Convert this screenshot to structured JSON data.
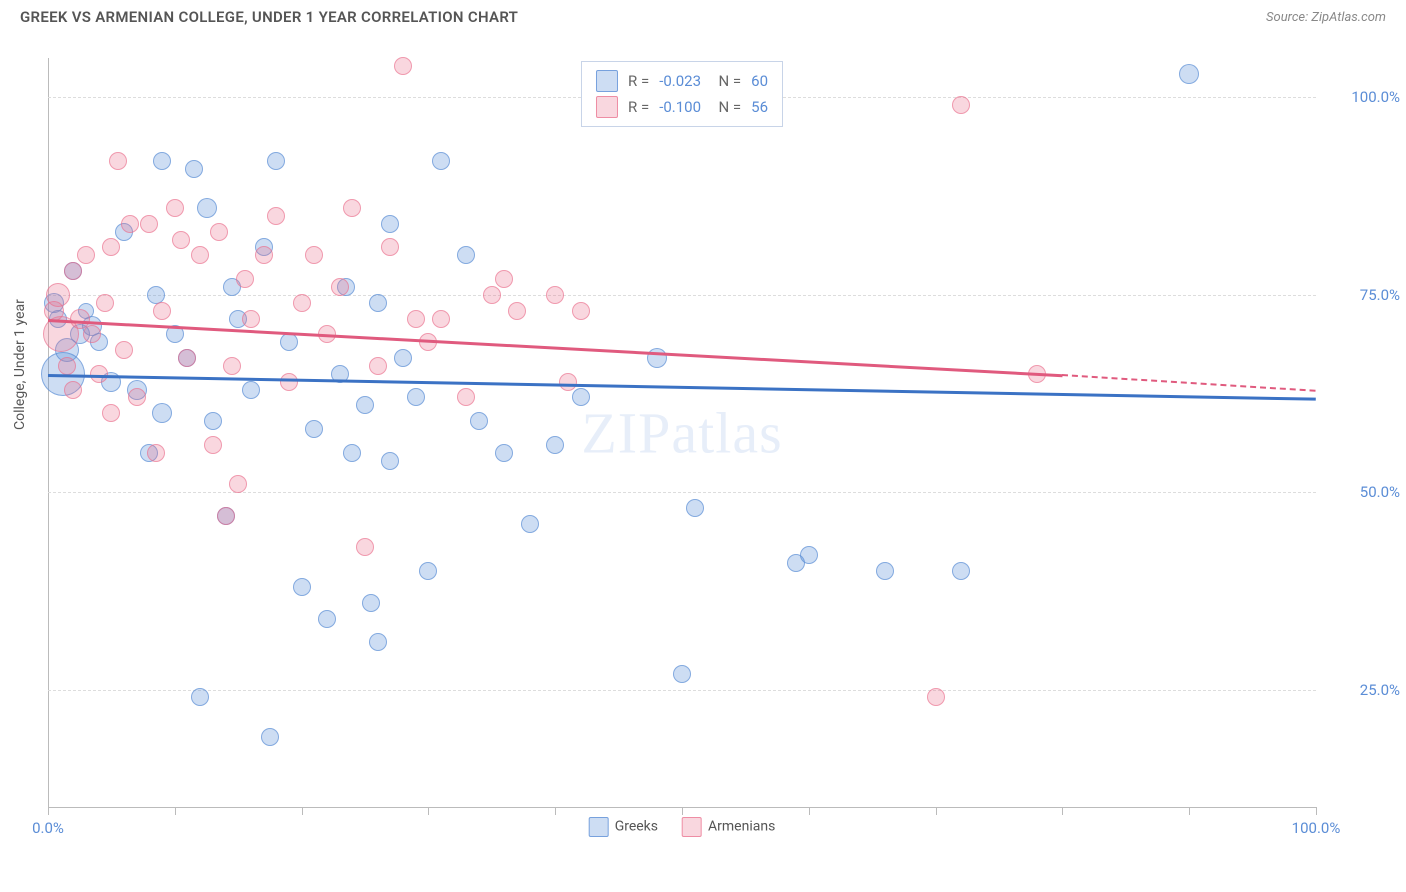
{
  "title": "GREEK VS ARMENIAN COLLEGE, UNDER 1 YEAR CORRELATION CHART",
  "source": "Source: ZipAtlas.com",
  "y_axis_label": "College, Under 1 year",
  "watermark": "ZIPatlas",
  "chart": {
    "type": "scatter",
    "xlim": [
      0,
      100
    ],
    "ylim": [
      10,
      105
    ],
    "x_ticks": [
      0,
      10,
      20,
      30,
      40,
      50,
      60,
      70,
      80,
      90,
      100
    ],
    "x_tick_labels": {
      "0": "0.0%",
      "100": "100.0%"
    },
    "y_gridlines": [
      25,
      50,
      75,
      100
    ],
    "y_tick_labels": {
      "25": "25.0%",
      "50": "50.0%",
      "75": "75.0%",
      "100": "100.0%"
    },
    "background_color": "#ffffff",
    "grid_color": "#dddddd",
    "axis_color": "#bbbbbb",
    "tick_label_color": "#5b8dd6",
    "series": [
      {
        "name": "Greeks",
        "label": "Greeks",
        "fill": "rgba(91,141,214,0.30)",
        "stroke": "rgba(91,141,214,0.65)",
        "trend_color": "#3b72c4",
        "R": "-0.023",
        "N": "60",
        "trend": {
          "x1": 0,
          "y1": 65,
          "x2": 100,
          "y2": 62
        },
        "points": [
          {
            "x": 0.5,
            "y": 74,
            "r": 10
          },
          {
            "x": 0.8,
            "y": 72,
            "r": 9
          },
          {
            "x": 1.2,
            "y": 65,
            "r": 22
          },
          {
            "x": 1.5,
            "y": 68,
            "r": 12
          },
          {
            "x": 2.0,
            "y": 78,
            "r": 9
          },
          {
            "x": 2.5,
            "y": 70,
            "r": 10
          },
          {
            "x": 3.0,
            "y": 73,
            "r": 8
          },
          {
            "x": 3.5,
            "y": 71,
            "r": 10
          },
          {
            "x": 4.0,
            "y": 69,
            "r": 9
          },
          {
            "x": 5.0,
            "y": 64,
            "r": 10
          },
          {
            "x": 6.0,
            "y": 83,
            "r": 9
          },
          {
            "x": 7.0,
            "y": 63,
            "r": 10
          },
          {
            "x": 8.0,
            "y": 55,
            "r": 9
          },
          {
            "x": 8.5,
            "y": 75,
            "r": 9
          },
          {
            "x": 9.0,
            "y": 60,
            "r": 10
          },
          {
            "x": 9.0,
            "y": 92,
            "r": 9
          },
          {
            "x": 10.0,
            "y": 70,
            "r": 9
          },
          {
            "x": 11.0,
            "y": 67,
            "r": 9
          },
          {
            "x": 11.5,
            "y": 91,
            "r": 9
          },
          {
            "x": 12.0,
            "y": 24,
            "r": 9
          },
          {
            "x": 12.5,
            "y": 86,
            "r": 10
          },
          {
            "x": 13.0,
            "y": 59,
            "r": 9
          },
          {
            "x": 14.0,
            "y": 47,
            "r": 9
          },
          {
            "x": 14.5,
            "y": 76,
            "r": 9
          },
          {
            "x": 15.0,
            "y": 72,
            "r": 9
          },
          {
            "x": 16.0,
            "y": 63,
            "r": 9
          },
          {
            "x": 17.0,
            "y": 81,
            "r": 9
          },
          {
            "x": 17.5,
            "y": 19,
            "r": 9
          },
          {
            "x": 18.0,
            "y": 92,
            "r": 9
          },
          {
            "x": 19.0,
            "y": 69,
            "r": 9
          },
          {
            "x": 20.0,
            "y": 38,
            "r": 9
          },
          {
            "x": 21.0,
            "y": 58,
            "r": 9
          },
          {
            "x": 22.0,
            "y": 34,
            "r": 9
          },
          {
            "x": 23.0,
            "y": 65,
            "r": 9
          },
          {
            "x": 23.5,
            "y": 76,
            "r": 9
          },
          {
            "x": 24.0,
            "y": 55,
            "r": 9
          },
          {
            "x": 25.0,
            "y": 61,
            "r": 9
          },
          {
            "x": 25.5,
            "y": 36,
            "r": 9
          },
          {
            "x": 26.0,
            "y": 31,
            "r": 9
          },
          {
            "x": 26.0,
            "y": 74,
            "r": 9
          },
          {
            "x": 27.0,
            "y": 54,
            "r": 9
          },
          {
            "x": 27.0,
            "y": 84,
            "r": 9
          },
          {
            "x": 28.0,
            "y": 67,
            "r": 9
          },
          {
            "x": 29.0,
            "y": 62,
            "r": 9
          },
          {
            "x": 30.0,
            "y": 40,
            "r": 9
          },
          {
            "x": 31.0,
            "y": 92,
            "r": 9
          },
          {
            "x": 33.0,
            "y": 80,
            "r": 9
          },
          {
            "x": 34.0,
            "y": 59,
            "r": 9
          },
          {
            "x": 36.0,
            "y": 55,
            "r": 9
          },
          {
            "x": 38.0,
            "y": 46,
            "r": 9
          },
          {
            "x": 40.0,
            "y": 56,
            "r": 9
          },
          {
            "x": 42.0,
            "y": 62,
            "r": 9
          },
          {
            "x": 48.0,
            "y": 67,
            "r": 10
          },
          {
            "x": 50.0,
            "y": 27,
            "r": 9
          },
          {
            "x": 51.0,
            "y": 48,
            "r": 9
          },
          {
            "x": 59.0,
            "y": 41,
            "r": 9
          },
          {
            "x": 60.0,
            "y": 42,
            "r": 9
          },
          {
            "x": 66.0,
            "y": 40,
            "r": 9
          },
          {
            "x": 72.0,
            "y": 40,
            "r": 9
          },
          {
            "x": 90.0,
            "y": 103,
            "r": 10
          }
        ]
      },
      {
        "name": "Armenians",
        "label": "Armenians",
        "fill": "rgba(233,110,140,0.28)",
        "stroke": "rgba(233,110,140,0.60)",
        "trend_color": "#e05a7e",
        "R": "-0.100",
        "N": "56",
        "trend": {
          "x1": 0,
          "y1": 72,
          "x2": 80,
          "y2": 65
        },
        "trend_dash": {
          "x1": 80,
          "y1": 65,
          "x2": 100,
          "y2": 63
        },
        "points": [
          {
            "x": 0.5,
            "y": 73,
            "r": 10
          },
          {
            "x": 0.8,
            "y": 75,
            "r": 12
          },
          {
            "x": 1.0,
            "y": 70,
            "r": 18
          },
          {
            "x": 1.5,
            "y": 66,
            "r": 9
          },
          {
            "x": 2.0,
            "y": 78,
            "r": 9
          },
          {
            "x": 2.0,
            "y": 63,
            "r": 9
          },
          {
            "x": 2.5,
            "y": 72,
            "r": 10
          },
          {
            "x": 3.0,
            "y": 80,
            "r": 9
          },
          {
            "x": 3.5,
            "y": 70,
            "r": 9
          },
          {
            "x": 4.0,
            "y": 65,
            "r": 9
          },
          {
            "x": 4.5,
            "y": 74,
            "r": 9
          },
          {
            "x": 5.0,
            "y": 81,
            "r": 9
          },
          {
            "x": 5.0,
            "y": 60,
            "r": 9
          },
          {
            "x": 5.5,
            "y": 92,
            "r": 9
          },
          {
            "x": 6.0,
            "y": 68,
            "r": 9
          },
          {
            "x": 6.5,
            "y": 84,
            "r": 9
          },
          {
            "x": 7.0,
            "y": 62,
            "r": 9
          },
          {
            "x": 8.0,
            "y": 84,
            "r": 9
          },
          {
            "x": 8.5,
            "y": 55,
            "r": 9
          },
          {
            "x": 9.0,
            "y": 73,
            "r": 9
          },
          {
            "x": 10.0,
            "y": 86,
            "r": 9
          },
          {
            "x": 10.5,
            "y": 82,
            "r": 9
          },
          {
            "x": 11.0,
            "y": 67,
            "r": 9
          },
          {
            "x": 12.0,
            "y": 80,
            "r": 9
          },
          {
            "x": 13.0,
            "y": 56,
            "r": 9
          },
          {
            "x": 13.5,
            "y": 83,
            "r": 9
          },
          {
            "x": 14.0,
            "y": 47,
            "r": 9
          },
          {
            "x": 14.5,
            "y": 66,
            "r": 9
          },
          {
            "x": 15.0,
            "y": 51,
            "r": 9
          },
          {
            "x": 15.5,
            "y": 77,
            "r": 9
          },
          {
            "x": 16.0,
            "y": 72,
            "r": 9
          },
          {
            "x": 17.0,
            "y": 80,
            "r": 9
          },
          {
            "x": 18.0,
            "y": 85,
            "r": 9
          },
          {
            "x": 19.0,
            "y": 64,
            "r": 9
          },
          {
            "x": 20.0,
            "y": 74,
            "r": 9
          },
          {
            "x": 21.0,
            "y": 80,
            "r": 9
          },
          {
            "x": 22.0,
            "y": 70,
            "r": 9
          },
          {
            "x": 23.0,
            "y": 76,
            "r": 9
          },
          {
            "x": 24.0,
            "y": 86,
            "r": 9
          },
          {
            "x": 25.0,
            "y": 43,
            "r": 9
          },
          {
            "x": 26.0,
            "y": 66,
            "r": 9
          },
          {
            "x": 27.0,
            "y": 81,
            "r": 9
          },
          {
            "x": 28.0,
            "y": 104,
            "r": 9
          },
          {
            "x": 29.0,
            "y": 72,
            "r": 9
          },
          {
            "x": 30.0,
            "y": 69,
            "r": 9
          },
          {
            "x": 31.0,
            "y": 72,
            "r": 9
          },
          {
            "x": 33.0,
            "y": 62,
            "r": 9
          },
          {
            "x": 35.0,
            "y": 75,
            "r": 9
          },
          {
            "x": 36.0,
            "y": 77,
            "r": 9
          },
          {
            "x": 37.0,
            "y": 73,
            "r": 9
          },
          {
            "x": 40.0,
            "y": 75,
            "r": 9
          },
          {
            "x": 41.0,
            "y": 64,
            "r": 9
          },
          {
            "x": 42.0,
            "y": 73,
            "r": 9
          },
          {
            "x": 70.0,
            "y": 24,
            "r": 9
          },
          {
            "x": 72.0,
            "y": 99,
            "r": 9
          },
          {
            "x": 78.0,
            "y": 65,
            "r": 9
          }
        ]
      }
    ]
  },
  "legend_top": [
    {
      "swatch_fill": "rgba(91,141,214,0.30)",
      "swatch_stroke": "rgba(91,141,214,0.75)",
      "R_label": "R =",
      "R": "-0.023",
      "N_label": "N =",
      "N": "60"
    },
    {
      "swatch_fill": "rgba(233,110,140,0.28)",
      "swatch_stroke": "rgba(233,110,140,0.70)",
      "R_label": "R =",
      "R": "-0.100",
      "N_label": "N =",
      "N": "56"
    }
  ],
  "legend_bottom": [
    {
      "swatch_fill": "rgba(91,141,214,0.30)",
      "swatch_stroke": "rgba(91,141,214,0.75)",
      "label": "Greeks"
    },
    {
      "swatch_fill": "rgba(233,110,140,0.28)",
      "swatch_stroke": "rgba(233,110,140,0.70)",
      "label": "Armenians"
    }
  ]
}
